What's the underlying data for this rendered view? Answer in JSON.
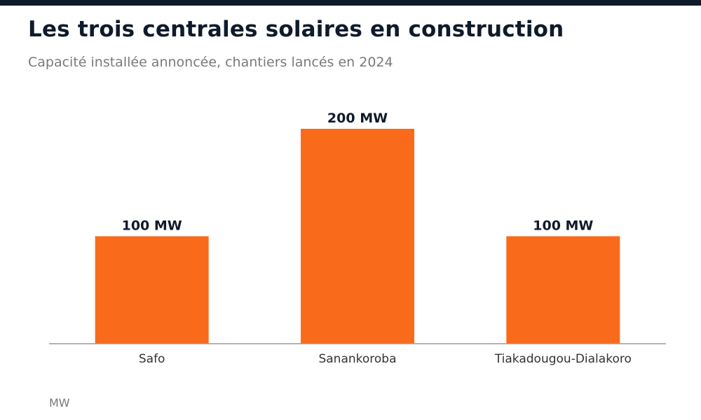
{
  "colors": {
    "accent": "#f96b1b",
    "header_bar": "#0f1a2a",
    "title": "#0f1a2a",
    "muted": "#7a7a7a",
    "axis": "#9a9a9a"
  },
  "chart_data": {
    "type": "bar",
    "title": "Les trois centrales solaires en construction",
    "subtitle": "Capacité installée annoncée, chantiers lancés en 2024",
    "categories": [
      "Safo",
      "Sanankoroba",
      "Tiakadougou-Dialakoro"
    ],
    "values": [
      100,
      200,
      100
    ],
    "data_labels": [
      "100 MW",
      "200 MW",
      "100 MW"
    ],
    "unit_note": "MW",
    "ylim": [
      0,
      200
    ],
    "grid": false,
    "legend": "none"
  }
}
